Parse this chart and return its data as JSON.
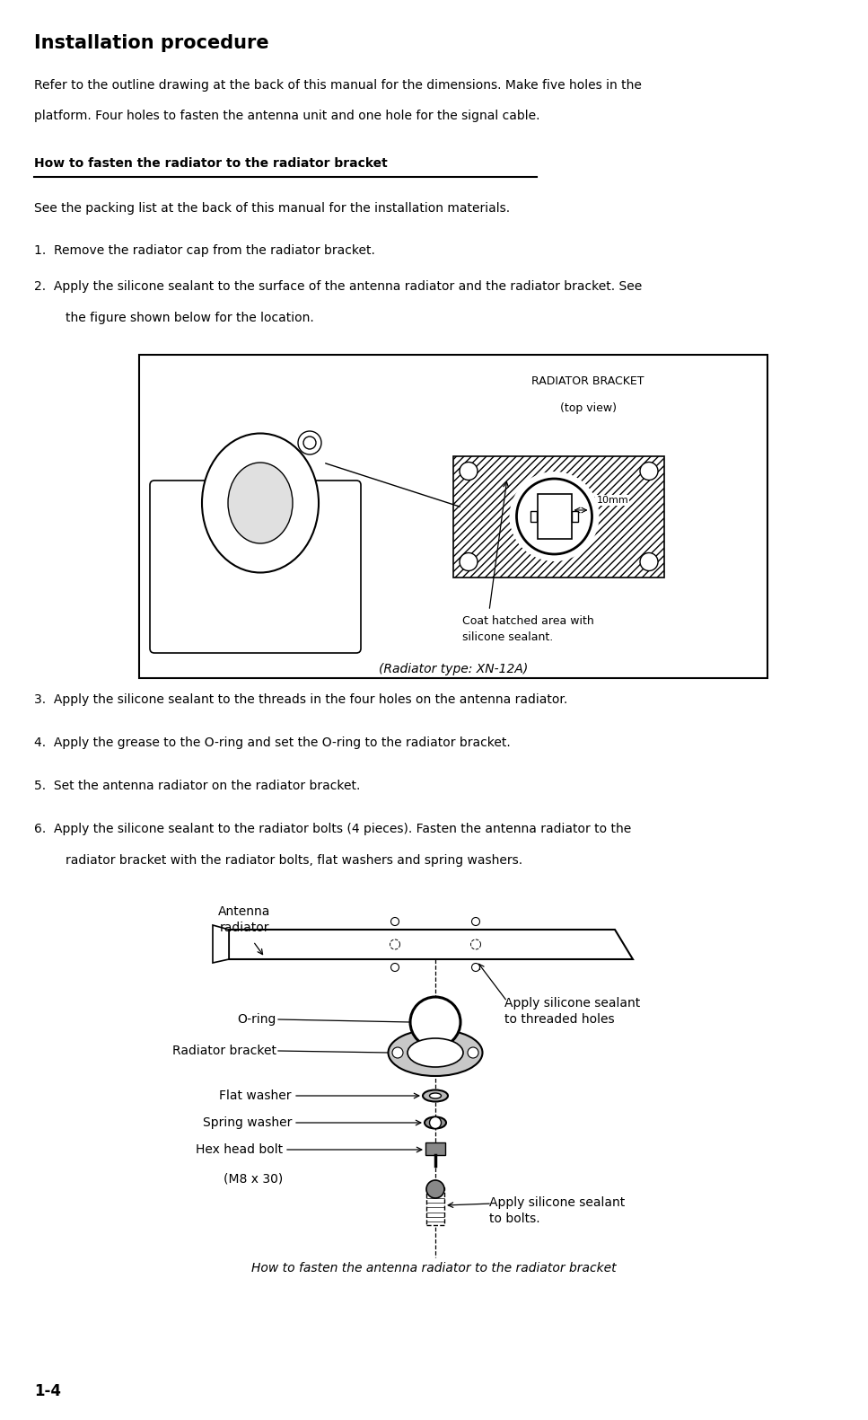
{
  "title": "Installation procedure",
  "bg_color": "#ffffff",
  "text_color": "#000000",
  "page_number": "1-4",
  "subheading": "How to fasten the radiator to the radiator bracket",
  "body_text_2": "See the packing list at the back of this manual for the installation materials.",
  "fig1_label_top": "RADIATOR BRACKET",
  "fig1_label_sub": "(top view)",
  "fig1_dim_label": "10mm",
  "fig1_coat_label": "Coat hatched area with\nsilicone sealant.",
  "fig1_type_label": "(Radiator type: XN-12A)",
  "fig2_caption": "How to fasten the antenna radiator to the radiator bracket"
}
